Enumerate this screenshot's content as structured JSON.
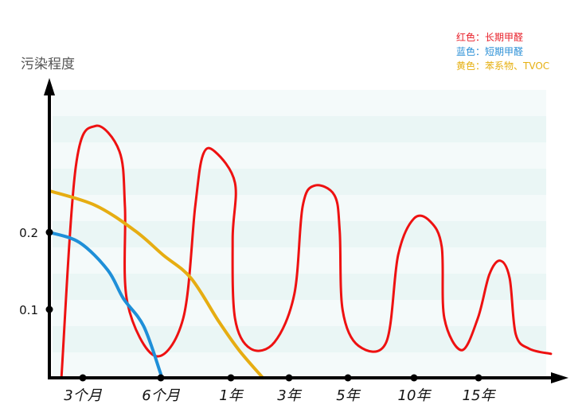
{
  "chart_data": {
    "type": "line",
    "title": "",
    "ylabel": "污染程度",
    "xlabel": "",
    "x_tick_labels": [
      "3个月",
      "6个月",
      "1年",
      "3年",
      "5年",
      "10年",
      "15年"
    ],
    "y_tick_labels": [
      "0.1",
      "0.2"
    ],
    "y_ticks": [
      0.1,
      0.2
    ],
    "ylim": [
      0,
      0.38
    ],
    "grid": false,
    "legend_position": "top-right",
    "legend": [
      {
        "text": "红色：长期甲醛",
        "color": "#e8202a"
      },
      {
        "text": "蓝色：短期甲醛",
        "color": "#2a8fd6"
      },
      {
        "text": "黄色：苯系物、TVOC",
        "color": "#e6b012"
      }
    ],
    "series": [
      {
        "color": "#ee1111",
        "points": [
          [
            0.36,
            0
          ],
          [
            0.79,
            0.29
          ],
          [
            1.16,
            0.346
          ],
          [
            1.47,
            0.311
          ],
          [
            1.54,
            0.235
          ],
          [
            1.57,
            0.104
          ],
          [
            1.93,
            0.03
          ],
          [
            2.32,
            0.082
          ],
          [
            2.49,
            0.235
          ],
          [
            2.6,
            0.306
          ],
          [
            2.77,
            0.311
          ],
          [
            3.07,
            0.268
          ],
          [
            3.03,
            0.191
          ],
          [
            3.07,
            0.082
          ],
          [
            3.34,
            0.04
          ],
          [
            3.75,
            0.049
          ],
          [
            4.09,
            0.115
          ],
          [
            4.23,
            0.235
          ],
          [
            4.43,
            0.264
          ],
          [
            4.77,
            0.251
          ],
          [
            4.86,
            0.202
          ],
          [
            4.91,
            0.093
          ],
          [
            5.16,
            0.044
          ],
          [
            5.58,
            0.049
          ],
          [
            5.76,
            0.169
          ],
          [
            6.0,
            0.219
          ],
          [
            6.25,
            0.215
          ],
          [
            6.43,
            0.18
          ],
          [
            6.47,
            0.082
          ],
          [
            6.74,
            0.038
          ],
          [
            6.99,
            0.082
          ],
          [
            7.16,
            0.142
          ],
          [
            7.32,
            0.161
          ],
          [
            7.46,
            0.137
          ],
          [
            7.55,
            0.06
          ],
          [
            7.75,
            0.04
          ],
          [
            8.07,
            0.033
          ]
        ]
      },
      {
        "color": "#1e8fd8",
        "points": [
          [
            0,
            0.2
          ],
          [
            0.9,
            0.186
          ],
          [
            1.32,
            0.148
          ],
          [
            1.52,
            0.109
          ],
          [
            1.78,
            0.071
          ],
          [
            2,
            0.005
          ]
        ]
      },
      {
        "color": "#e6ad12",
        "points": [
          [
            0,
            0.257
          ],
          [
            1.16,
            0.237
          ],
          [
            1.67,
            0.202
          ],
          [
            2.03,
            0.169
          ],
          [
            2.43,
            0.137
          ],
          [
            2.83,
            0.077
          ],
          [
            3.14,
            0.038
          ],
          [
            3.55,
            0
          ]
        ]
      }
    ],
    "background_band_colors": [
      "#f4fafa",
      "#eaf6f5"
    ]
  }
}
